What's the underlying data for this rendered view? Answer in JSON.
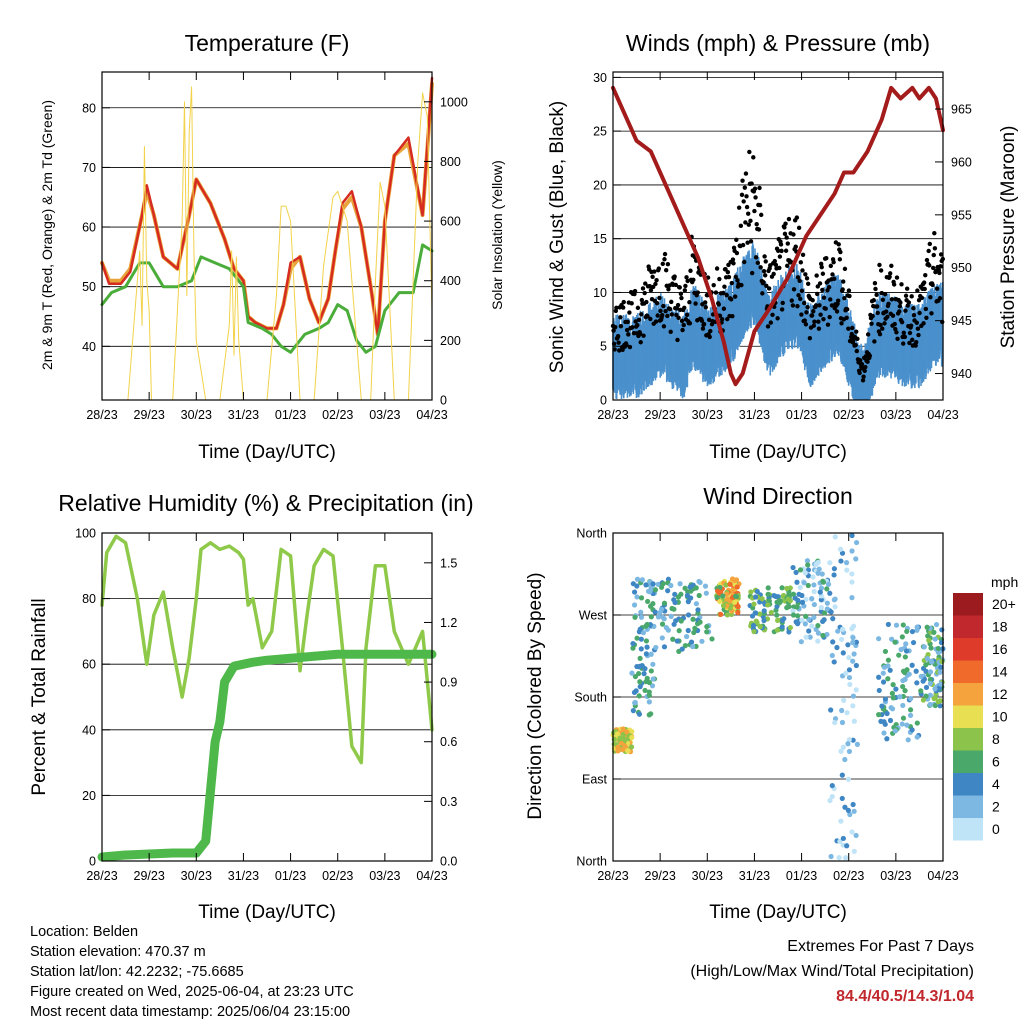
{
  "footer": {
    "location": "Location: Belden",
    "elevation": "Station elevation: 470.37 m",
    "latlon": "Station lat/lon: 42.2232; -75.6685",
    "created": "Figure created on Wed, 2025-06-04, at 23:23 UTC",
    "recent": "Most recent data timestamp: 2025/06/04 23:15:00",
    "extremes_title": "Extremes For Past 7 Days",
    "extremes_subtitle": "(High/Low/Max Wind/Total Precipitation)",
    "extremes_values": "84.4/40.5/14.3/1.04",
    "extremes_color": "#c0282d"
  },
  "chart_data": [
    {
      "id": "temperature",
      "type": "line",
      "title": "Temperature (F)",
      "xlabel": "Time (Day/UTC)",
      "ylabel": "2m & 9m T (Red, Orange) & 2m Td (Green)",
      "ylabel_right": "Solar Insolation (Yellow)",
      "x_ticks": [
        "28/23",
        "29/23",
        "30/23",
        "31/23",
        "01/23",
        "02/23",
        "03/23",
        "04/23"
      ],
      "xlim": [
        0,
        7
      ],
      "ylim": [
        31,
        86
      ],
      "y_ticks": [
        40,
        50,
        60,
        70,
        80
      ],
      "y2lim": [
        0,
        1100
      ],
      "y2_ticks": [
        0,
        200,
        400,
        600,
        800,
        1000
      ],
      "grid": true,
      "series": [
        {
          "color": "#e8a33a",
          "axis": "left",
          "width": 4,
          "x": [
            0,
            0.15,
            0.4,
            0.6,
            0.85,
            0.95,
            1.1,
            1.3,
            1.6,
            1.85,
            2.0,
            2.3,
            2.6,
            2.8,
            3.0,
            3.1,
            3.25,
            3.5,
            3.7,
            3.85,
            4.0,
            4.2,
            4.4,
            4.6,
            4.8,
            4.95,
            5.1,
            5.3,
            5.5,
            5.7,
            5.85,
            6.0,
            6.2,
            6.5,
            6.8,
            7.0
          ],
          "y": [
            54,
            51,
            51,
            53,
            62,
            66,
            62,
            55,
            53,
            62,
            68,
            64,
            58,
            53,
            51,
            45,
            44,
            43,
            43,
            47,
            53,
            55,
            48,
            44,
            48,
            56,
            63,
            65,
            60,
            50,
            42,
            61,
            72,
            74,
            62,
            84
          ]
        },
        {
          "color": "#d62b20",
          "axis": "left",
          "width": 2.5,
          "x": [
            0,
            0.15,
            0.4,
            0.6,
            0.85,
            0.95,
            1.1,
            1.3,
            1.6,
            1.85,
            2.0,
            2.3,
            2.6,
            2.8,
            3.0,
            3.1,
            3.25,
            3.5,
            3.7,
            3.85,
            4.0,
            4.2,
            4.4,
            4.6,
            4.8,
            4.95,
            5.1,
            5.3,
            5.5,
            5.7,
            5.85,
            6.0,
            6.2,
            6.5,
            6.8,
            7.0
          ],
          "y": [
            54,
            50.5,
            50.5,
            52.5,
            62,
            67,
            62,
            55,
            53,
            62,
            68,
            64,
            58,
            53,
            51,
            45,
            44,
            43,
            43,
            47,
            54,
            55,
            48,
            44,
            48,
            56,
            64,
            66,
            60,
            50,
            42,
            61,
            72,
            75,
            62,
            85
          ]
        },
        {
          "color": "#4aad3a",
          "axis": "left",
          "width": 3,
          "x": [
            0,
            0.2,
            0.5,
            0.8,
            1.0,
            1.3,
            1.6,
            1.9,
            2.1,
            2.4,
            2.7,
            3.0,
            3.1,
            3.4,
            3.6,
            3.8,
            4.0,
            4.3,
            4.6,
            4.8,
            5.0,
            5.2,
            5.4,
            5.6,
            5.8,
            6.0,
            6.3,
            6.6,
            6.8,
            7.0
          ],
          "y": [
            47,
            49,
            50,
            54,
            54,
            50,
            50,
            51,
            55,
            54,
            53,
            50,
            44,
            43,
            42,
            40,
            39,
            42,
            43,
            44,
            47,
            46,
            41,
            39,
            40,
            46,
            49,
            49,
            57,
            56
          ]
        },
        {
          "color": "#f2d24a",
          "axis": "right",
          "width": 1,
          "x": [
            0.2,
            0.55,
            0.8,
            0.85,
            0.9,
            0.95,
            1.0,
            1.05,
            1.2,
            1.5,
            1.7,
            1.75,
            1.8,
            1.85,
            1.9,
            1.95,
            2.0,
            2.2,
            2.5,
            2.7,
            2.75,
            2.8,
            2.85,
            2.9,
            3.0,
            3.2,
            3.5,
            3.7,
            3.8,
            3.9,
            4.0,
            4.2,
            4.5,
            4.7,
            4.9,
            5.0,
            5.2,
            5.5,
            5.7,
            5.8,
            5.9,
            6.0,
            6.2,
            6.5,
            6.7,
            6.8,
            6.9,
            7.0
          ],
          "y": [
            0,
            0,
            500,
            250,
            850,
            400,
            300,
            0,
            0,
            0,
            600,
            1000,
            350,
            900,
            1050,
            500,
            200,
            0,
            0,
            250,
            500,
            150,
            480,
            200,
            0,
            0,
            0,
            350,
            650,
            650,
            600,
            0,
            0,
            450,
            680,
            700,
            600,
            0,
            0,
            400,
            730,
            650,
            0,
            0,
            800,
            1030,
            950,
            300
          ]
        }
      ]
    },
    {
      "id": "winds",
      "type": "scatter",
      "title": "Winds (mph) & Pressure (mb)",
      "xlabel": "Time (Day/UTC)",
      "ylabel": "Sonic Wind & Gust (Blue, Black)",
      "ylabel_right": "Station Pressure (Maroon)",
      "x_ticks": [
        "28/23",
        "29/23",
        "30/23",
        "31/23",
        "01/23",
        "02/23",
        "03/23",
        "04/23"
      ],
      "xlim": [
        0,
        7
      ],
      "ylim": [
        0,
        30.5
      ],
      "y_ticks": [
        0,
        5,
        10,
        15,
        20,
        25,
        30
      ],
      "y2lim": [
        937.5,
        968.5
      ],
      "y2_ticks": [
        940,
        945,
        950,
        955,
        960,
        965
      ],
      "grid": true,
      "wind_envelope": {
        "x": [
          0,
          0.5,
          1.0,
          1.5,
          1.7,
          2.0,
          2.5,
          2.8,
          3.0,
          3.3,
          3.6,
          3.9,
          4.2,
          4.5,
          4.8,
          5.0,
          5.3,
          5.6,
          5.9,
          6.2,
          6.5,
          6.8,
          7.0
        ],
        "gust": [
          8,
          9,
          13,
          9,
          14,
          10,
          12,
          20,
          21,
          11,
          14,
          16,
          9,
          12,
          14,
          9,
          3,
          11,
          11,
          9,
          9,
          14,
          12
        ],
        "sustained": [
          5,
          5,
          7,
          5,
          8,
          6,
          8,
          11,
          12,
          7,
          9,
          10,
          6,
          8,
          9,
          6,
          2,
          7,
          7,
          6,
          6,
          8,
          8
        ]
      },
      "series": [
        {
          "color": "#a31b1b",
          "axis": "right",
          "width": 4,
          "x": [
            0,
            0.2,
            0.5,
            0.8,
            1.1,
            1.4,
            1.8,
            2.1,
            2.35,
            2.5,
            2.6,
            2.75,
            3.0,
            3.3,
            3.7,
            4.1,
            4.4,
            4.7,
            4.9,
            5.1,
            5.4,
            5.7,
            5.9,
            6.1,
            6.35,
            6.5,
            6.7,
            6.85,
            7.0
          ],
          "y": [
            967,
            965,
            962,
            961,
            958,
            955,
            951,
            947,
            943,
            940,
            939,
            940,
            944,
            946,
            949,
            953,
            955,
            957,
            959,
            959,
            961,
            964,
            967,
            966,
            967,
            966,
            967,
            966,
            963
          ]
        }
      ]
    },
    {
      "id": "humidity",
      "type": "line",
      "title": "Relative Humidity (%) & Precipitation (in)",
      "xlabel": "Time (Day/UTC)",
      "ylabel": "Percent & Total Rainfall",
      "x_ticks": [
        "28/23",
        "29/23",
        "30/23",
        "31/23",
        "01/23",
        "02/23",
        "03/23",
        "04/23"
      ],
      "xlim": [
        0,
        7
      ],
      "ylim": [
        0,
        100
      ],
      "y_ticks": [
        0,
        20,
        40,
        60,
        80,
        100
      ],
      "y2lim": [
        0,
        1.65
      ],
      "y2_ticks": [
        "0.0",
        "0.3",
        "0.6",
        "0.9",
        "1.2",
        "1.5"
      ],
      "grid": true,
      "series": [
        {
          "color": "#8fc94a",
          "axis": "left",
          "width": 3.5,
          "x": [
            0,
            0.1,
            0.3,
            0.5,
            0.75,
            0.95,
            1.1,
            1.3,
            1.5,
            1.7,
            1.85,
            2.0,
            2.1,
            2.3,
            2.5,
            2.7,
            2.9,
            3.0,
            3.1,
            3.2,
            3.4,
            3.6,
            3.8,
            4.0,
            4.2,
            4.35,
            4.5,
            4.7,
            4.9,
            5.1,
            5.3,
            5.5,
            5.6,
            5.8,
            6.0,
            6.2,
            6.5,
            6.8,
            7.0
          ],
          "y": [
            78,
            94,
            99,
            97,
            80,
            60,
            75,
            82,
            65,
            50,
            62,
            80,
            95,
            97,
            95,
            96,
            94,
            92,
            78,
            80,
            65,
            70,
            95,
            93,
            58,
            75,
            90,
            95,
            93,
            65,
            35,
            30,
            65,
            90,
            90,
            70,
            60,
            70,
            40
          ]
        },
        {
          "color": "#4fb84a",
          "axis": "right",
          "width": 9,
          "x": [
            0,
            0.5,
            1.0,
            1.5,
            2.0,
            2.2,
            2.3,
            2.4,
            2.5,
            2.6,
            2.8,
            3.0,
            3.2,
            3.5,
            4.0,
            4.5,
            5.0,
            5.5,
            6.0,
            6.5,
            7.0
          ],
          "y": [
            0.02,
            0.03,
            0.035,
            0.04,
            0.04,
            0.1,
            0.35,
            0.6,
            0.7,
            0.9,
            0.98,
            0.99,
            1.0,
            1.01,
            1.02,
            1.03,
            1.04,
            1.04,
            1.04,
            1.04,
            1.04
          ]
        }
      ]
    },
    {
      "id": "wind-direction",
      "type": "scatter",
      "title": "Wind Direction",
      "xlabel": "Time (Day/UTC)",
      "ylabel": "Direction (Colored By Speed)",
      "x_ticks": [
        "28/23",
        "29/23",
        "30/23",
        "31/23",
        "01/23",
        "02/23",
        "03/23",
        "04/23"
      ],
      "xlim": [
        0,
        7
      ],
      "y_ticks": [
        "North",
        "East",
        "South",
        "West",
        "North"
      ],
      "ylim": [
        0,
        360
      ],
      "grid": true,
      "legend": {
        "title": "mph",
        "labels": [
          "20+",
          "18",
          "16",
          "14",
          "12",
          "10",
          "8",
          "6",
          "4",
          "2",
          "0"
        ],
        "colors": [
          "#9b1b1e",
          "#c0282d",
          "#de3b2a",
          "#f06a2c",
          "#f5a33c",
          "#e8df52",
          "#8cc34a",
          "#4aa86a",
          "#3f86c4",
          "#7cb8e2",
          "#bfe3f7"
        ]
      },
      "clusters": [
        {
          "x0": 0.0,
          "x1": 0.4,
          "y0": 120,
          "y1": 145,
          "colors": [
            4,
            5,
            6
          ]
        },
        {
          "x0": 0.4,
          "x1": 0.9,
          "y0": 160,
          "y1": 310,
          "colors": [
            1,
            2,
            3
          ]
        },
        {
          "x0": 0.9,
          "x1": 2.1,
          "y0": 230,
          "y1": 310,
          "colors": [
            1,
            2,
            3
          ]
        },
        {
          "x0": 2.2,
          "x1": 2.7,
          "y0": 270,
          "y1": 310,
          "colors": [
            3,
            4,
            5,
            6,
            7
          ]
        },
        {
          "x0": 2.9,
          "x1": 3.8,
          "y0": 250,
          "y1": 300,
          "colors": [
            2,
            3,
            4
          ]
        },
        {
          "x0": 3.8,
          "x1": 4.6,
          "y0": 240,
          "y1": 330,
          "colors": [
            0,
            1,
            2,
            3
          ]
        },
        {
          "x0": 4.6,
          "x1": 5.2,
          "y0": 0,
          "y1": 360,
          "colors": [
            0,
            1,
            2
          ]
        },
        {
          "x0": 5.6,
          "x1": 6.5,
          "y0": 130,
          "y1": 260,
          "colors": [
            1,
            2,
            3
          ]
        },
        {
          "x0": 6.5,
          "x1": 7.0,
          "y0": 170,
          "y1": 260,
          "colors": [
            1,
            2,
            3,
            4
          ]
        }
      ]
    }
  ]
}
